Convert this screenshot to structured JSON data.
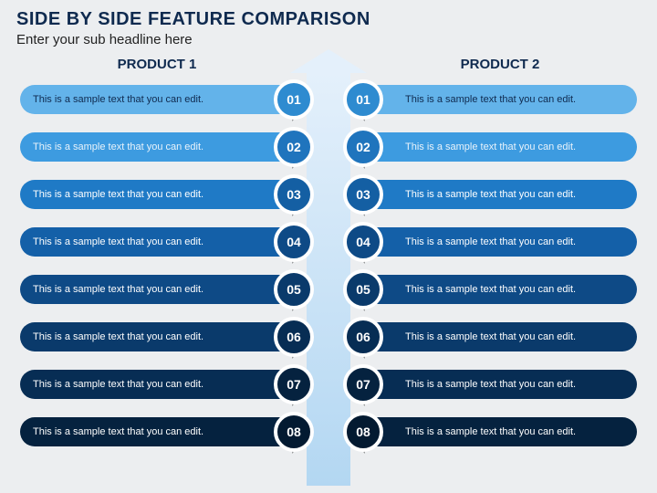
{
  "title": {
    "text": "SIDE BY SIDE FEATURE COMPARISON",
    "color": "#0f2a4f",
    "fontSize": 20
  },
  "subtitle": {
    "text": "Enter your sub headline here",
    "color": "#222222",
    "fontSize": 15
  },
  "columns": {
    "left": {
      "header": "PRODUCT 1",
      "headerColor": "#0f2a4f",
      "headerFontSize": 15
    },
    "right": {
      "header": "PRODUCT 2",
      "headerColor": "#0f2a4f",
      "headerFontSize": 15
    }
  },
  "rowText": "This is a sample text that you can edit.",
  "rows": [
    {
      "num": "01",
      "bar": "#63b3ea",
      "circle": "#2e8bd0",
      "textColor": "#0f2a4f"
    },
    {
      "num": "02",
      "bar": "#3d9be0",
      "circle": "#1f74bd",
      "textColor": "#e9f3fb"
    },
    {
      "num": "03",
      "bar": "#1f7ac6",
      "circle": "#145fa3",
      "textColor": "#ffffff"
    },
    {
      "num": "04",
      "bar": "#1460a8",
      "circle": "#0e4a86",
      "textColor": "#ffffff"
    },
    {
      "num": "05",
      "bar": "#0e4a86",
      "circle": "#0a3a6b",
      "textColor": "#ffffff"
    },
    {
      "num": "06",
      "bar": "#0a3a6b",
      "circle": "#072d54",
      "textColor": "#ffffff"
    },
    {
      "num": "07",
      "bar": "#072d54",
      "circle": "#05223f",
      "textColor": "#ffffff"
    },
    {
      "num": "08",
      "bar": "#05223f",
      "circle": "#031a31",
      "textColor": "#ffffff"
    }
  ],
  "arrow": {
    "topColor": "#e4f0fb",
    "bottomColor": "#b3d7f2"
  }
}
